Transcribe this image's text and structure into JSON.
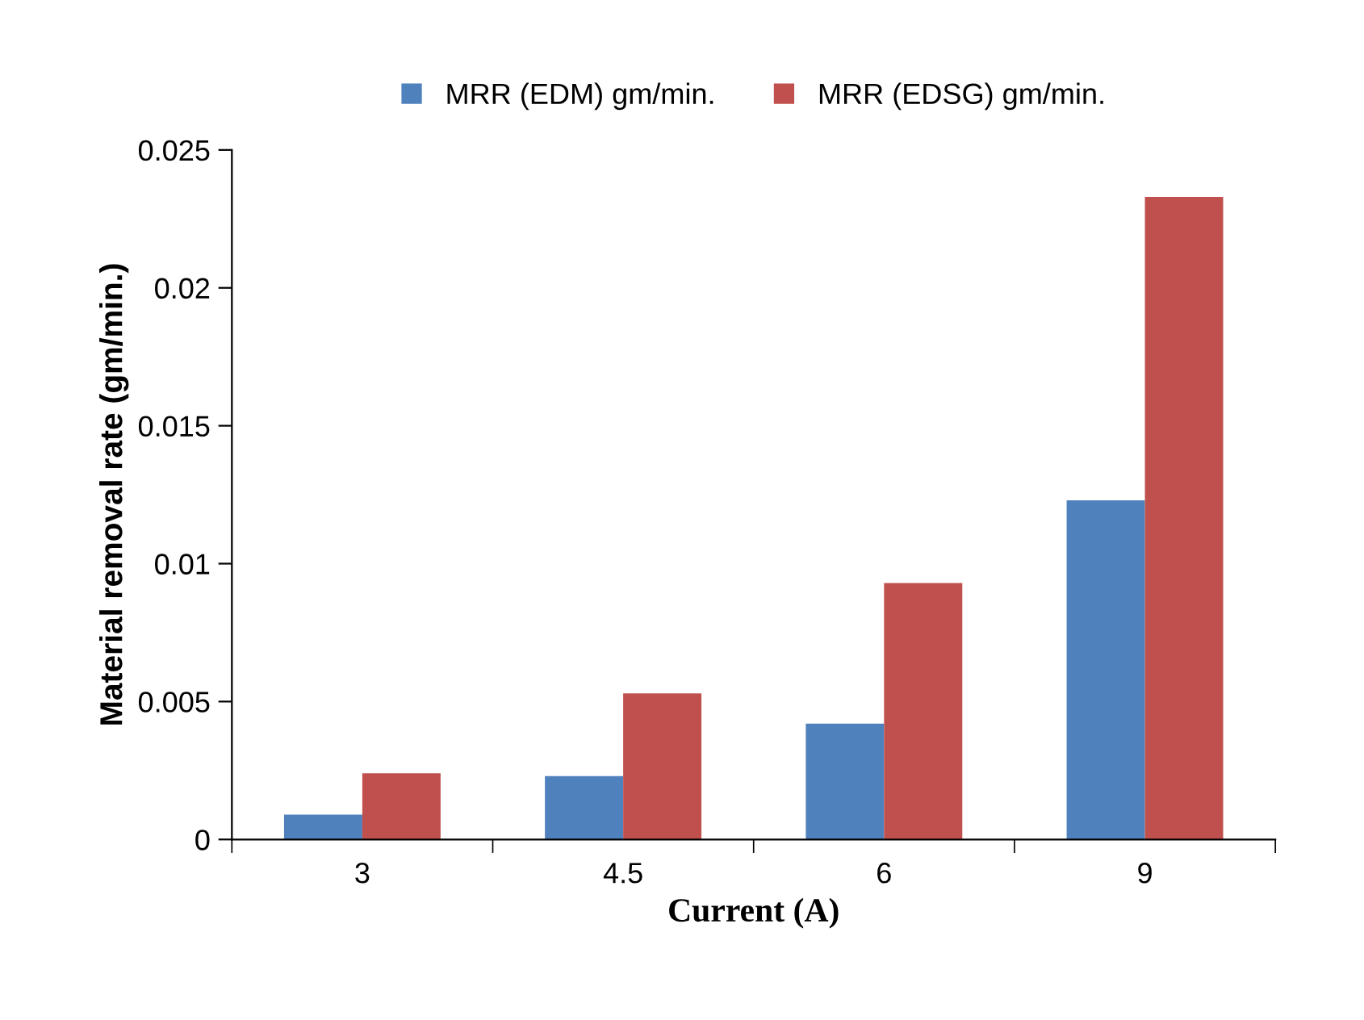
{
  "chart_data": {
    "type": "bar",
    "xlabel": "Current (A)",
    "ylabel": "Material removal rate (gm/min.)",
    "categories": [
      "3",
      "4.5",
      "6",
      "9"
    ],
    "series": [
      {
        "name": "MRR (EDM) gm/min.",
        "color": "#4f81bd",
        "values": [
          0.0009,
          0.0023,
          0.0042,
          0.0123
        ]
      },
      {
        "name": "MRR (EDSG) gm/min.",
        "color": "#c0504d",
        "values": [
          0.0024,
          0.0053,
          0.0093,
          0.0233
        ]
      }
    ],
    "ylim": [
      0,
      0.025
    ],
    "yticks": [
      0,
      0.005,
      0.01,
      0.015,
      0.02,
      0.025
    ],
    "grid": false,
    "legend": "top"
  }
}
